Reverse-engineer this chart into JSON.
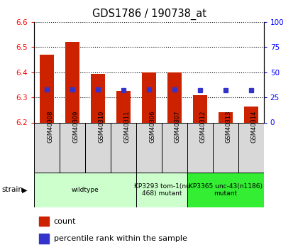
{
  "title": "GDS1786 / 190738_at",
  "samples": [
    "GSM40308",
    "GSM40309",
    "GSM40310",
    "GSM40311",
    "GSM40306",
    "GSM40307",
    "GSM40312",
    "GSM40313",
    "GSM40314"
  ],
  "count_values": [
    6.47,
    6.52,
    6.395,
    6.325,
    6.4,
    6.4,
    6.31,
    6.24,
    6.263
  ],
  "percentile_values": [
    33,
    33,
    33,
    32,
    33,
    33,
    32,
    32,
    32
  ],
  "ylim_left": [
    6.2,
    6.6
  ],
  "ylim_right": [
    0,
    100
  ],
  "yticks_left": [
    6.2,
    6.3,
    6.4,
    6.5,
    6.6
  ],
  "yticks_right": [
    0,
    25,
    50,
    75,
    100
  ],
  "bar_color": "#cc2200",
  "dot_color": "#3333cc",
  "group1_color": "#ccffcc",
  "group2_color": "#33ee33",
  "sample_box_color": "#d8d8d8",
  "group_labels": [
    "wildtype",
    "KP3293 tom-1(nu\n468) mutant",
    "KP3365 unc-43(n1186)\nmutant"
  ],
  "group_starts": [
    0,
    4,
    6
  ],
  "group_ends": [
    4,
    6,
    9
  ],
  "legend_count_label": "count",
  "legend_pct_label": "percentile rank within the sample",
  "strain_label": "strain"
}
